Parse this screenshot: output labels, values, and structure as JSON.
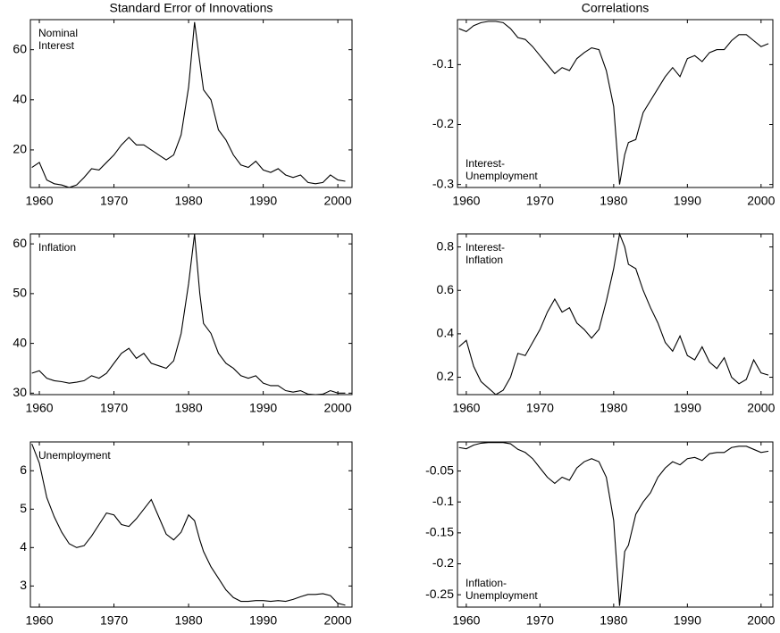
{
  "chart_data": [
    {
      "type": "line",
      "title": "Standard Error of Innovations",
      "annotation": [
        "Nominal",
        "Interest"
      ],
      "annotation_corner": "upper left",
      "color": "#000000",
      "x": [
        1959,
        1960,
        1961,
        1962,
        1963,
        1964,
        1965,
        1966,
        1967,
        1968,
        1969,
        1970,
        1971,
        1972,
        1973,
        1974,
        1975,
        1976,
        1977,
        1978,
        1979,
        1980,
        1980.8,
        1981.5,
        1982,
        1983,
        1984,
        1985,
        1986,
        1987,
        1988,
        1989,
        1990,
        1991,
        1992,
        1993,
        1994,
        1995,
        1996,
        1997,
        1998,
        1999,
        2000,
        2001
      ],
      "values": [
        13,
        15,
        8,
        6.5,
        6,
        5,
        6,
        9,
        12.5,
        12,
        15,
        18,
        22,
        25,
        22,
        22,
        20,
        18,
        16,
        18,
        26,
        45,
        71,
        55,
        44,
        40,
        28,
        24,
        18,
        14,
        13,
        15.5,
        12,
        11,
        12.5,
        10,
        9,
        10,
        7,
        6.5,
        7,
        10,
        8,
        7.5
      ],
      "xlim": [
        1958.8,
        2001.9
      ],
      "xticks": [
        1960,
        1970,
        1980,
        1990,
        2000
      ],
      "ylim": [
        5,
        72
      ],
      "yticks": [
        20,
        40,
        60
      ]
    },
    {
      "type": "line",
      "title": "Correlations",
      "annotation": [
        "Interest-",
        "Unemployment"
      ],
      "annotation_corner": "lower left",
      "color": "#000000",
      "x": [
        1959,
        1960,
        1961,
        1962,
        1963,
        1964,
        1965,
        1966,
        1967,
        1968,
        1969,
        1970,
        1971,
        1972,
        1973,
        1974,
        1975,
        1976,
        1977,
        1978,
        1979,
        1980,
        1980.8,
        1981.5,
        1982,
        1983,
        1984,
        1985,
        1986,
        1987,
        1988,
        1989,
        1990,
        1991,
        1992,
        1993,
        1994,
        1995,
        1996,
        1997,
        1998,
        1999,
        2000,
        2001
      ],
      "values": [
        -0.04,
        -0.045,
        -0.035,
        -0.03,
        -0.028,
        -0.028,
        -0.03,
        -0.04,
        -0.055,
        -0.058,
        -0.07,
        -0.085,
        -0.1,
        -0.115,
        -0.105,
        -0.11,
        -0.09,
        -0.08,
        -0.072,
        -0.075,
        -0.11,
        -0.17,
        -0.3,
        -0.25,
        -0.23,
        -0.225,
        -0.18,
        -0.16,
        -0.14,
        -0.12,
        -0.105,
        -0.12,
        -0.09,
        -0.085,
        -0.095,
        -0.08,
        -0.075,
        -0.075,
        -0.06,
        -0.05,
        -0.05,
        -0.06,
        -0.07,
        -0.065
      ],
      "xlim": [
        1958.8,
        2001.6
      ],
      "xticks": [
        1960,
        1970,
        1980,
        1990,
        2000
      ],
      "ylim": [
        -0.305,
        -0.025
      ],
      "yticks": [
        -0.1,
        -0.2,
        -0.3
      ]
    },
    {
      "type": "line",
      "annotation": [
        "Inflation"
      ],
      "annotation_corner": "upper left",
      "color": "#000000",
      "x": [
        1959,
        1960,
        1961,
        1962,
        1963,
        1964,
        1965,
        1966,
        1967,
        1968,
        1969,
        1970,
        1971,
        1972,
        1973,
        1974,
        1975,
        1976,
        1977,
        1978,
        1979,
        1980,
        1980.8,
        1981.5,
        1982,
        1983,
        1984,
        1985,
        1986,
        1987,
        1988,
        1989,
        1990,
        1991,
        1992,
        1993,
        1994,
        1995,
        1996,
        1997,
        1998,
        1999,
        2000,
        2001
      ],
      "values": [
        34,
        34.5,
        33,
        32.5,
        32.3,
        32,
        32.2,
        32.5,
        33.5,
        33,
        34,
        36,
        38,
        39,
        37,
        38,
        36,
        35.5,
        35,
        36.5,
        42,
        52,
        62,
        50,
        44,
        42,
        38,
        36,
        35,
        33.5,
        33,
        33.5,
        32,
        31.5,
        31.5,
        30.5,
        30.2,
        30.5,
        29.8,
        29.7,
        29.8,
        30.5,
        30,
        30
      ],
      "xlim": [
        1958.8,
        2001.9
      ],
      "xticks": [
        1960,
        1970,
        1980,
        1990,
        2000
      ],
      "ylim": [
        29.7,
        62
      ],
      "yticks": [
        30,
        40,
        50,
        60
      ]
    },
    {
      "type": "line",
      "annotation": [
        "Interest-",
        "Inflation"
      ],
      "annotation_corner": "upper left",
      "color": "#000000",
      "x": [
        1959,
        1960,
        1961,
        1962,
        1963,
        1964,
        1965,
        1966,
        1967,
        1968,
        1969,
        1970,
        1971,
        1972,
        1973,
        1974,
        1975,
        1976,
        1977,
        1978,
        1979,
        1980,
        1980.8,
        1981.5,
        1982,
        1983,
        1984,
        1985,
        1986,
        1987,
        1988,
        1989,
        1990,
        1991,
        1992,
        1993,
        1994,
        1995,
        1996,
        1997,
        1998,
        1999,
        2000,
        2001
      ],
      "values": [
        0.34,
        0.37,
        0.25,
        0.18,
        0.15,
        0.12,
        0.14,
        0.2,
        0.31,
        0.3,
        0.36,
        0.42,
        0.5,
        0.56,
        0.5,
        0.52,
        0.45,
        0.42,
        0.38,
        0.42,
        0.55,
        0.7,
        0.86,
        0.8,
        0.72,
        0.7,
        0.6,
        0.52,
        0.45,
        0.36,
        0.32,
        0.39,
        0.3,
        0.28,
        0.34,
        0.27,
        0.24,
        0.29,
        0.2,
        0.17,
        0.19,
        0.28,
        0.22,
        0.21
      ],
      "xlim": [
        1958.8,
        2001.6
      ],
      "xticks": [
        1960,
        1970,
        1980,
        1990,
        2000
      ],
      "ylim": [
        0.12,
        0.86
      ],
      "yticks": [
        0.2,
        0.4,
        0.6,
        0.8
      ]
    },
    {
      "type": "line",
      "annotation": [
        "Unemployment"
      ],
      "annotation_corner": "upper left",
      "color": "#000000",
      "x": [
        1959,
        1960,
        1961,
        1962,
        1963,
        1964,
        1965,
        1966,
        1967,
        1968,
        1969,
        1970,
        1971,
        1972,
        1973,
        1974,
        1975,
        1976,
        1977,
        1978,
        1979,
        1980,
        1980.8,
        1981.5,
        1982,
        1983,
        1984,
        1985,
        1986,
        1987,
        1988,
        1989,
        1990,
        1991,
        1992,
        1993,
        1994,
        1995,
        1996,
        1997,
        1998,
        1999,
        2000,
        2001
      ],
      "values": [
        6.7,
        6.2,
        5.3,
        4.8,
        4.4,
        4.1,
        4.0,
        4.05,
        4.3,
        4.6,
        4.9,
        4.85,
        4.6,
        4.55,
        4.75,
        5.0,
        5.25,
        4.8,
        4.35,
        4.2,
        4.4,
        4.85,
        4.7,
        4.2,
        3.9,
        3.5,
        3.2,
        2.9,
        2.7,
        2.6,
        2.6,
        2.62,
        2.62,
        2.6,
        2.62,
        2.6,
        2.65,
        2.72,
        2.78,
        2.78,
        2.8,
        2.75,
        2.55,
        2.5
      ],
      "xlim": [
        1958.8,
        2001.9
      ],
      "xticks": [
        1960,
        1970,
        1980,
        1990,
        2000
      ],
      "ylim": [
        2.45,
        6.75
      ],
      "yticks": [
        3,
        4,
        5,
        6
      ]
    },
    {
      "type": "line",
      "annotation": [
        "Inflation-",
        "Unemployment"
      ],
      "annotation_corner": "lower left",
      "color": "#000000",
      "x": [
        1959,
        1960,
        1961,
        1962,
        1963,
        1964,
        1965,
        1966,
        1967,
        1968,
        1969,
        1970,
        1971,
        1972,
        1973,
        1974,
        1975,
        1976,
        1977,
        1978,
        1979,
        1980,
        1980.8,
        1981.5,
        1982,
        1983,
        1984,
        1985,
        1986,
        1987,
        1988,
        1989,
        1990,
        1991,
        1992,
        1993,
        1994,
        1995,
        1996,
        1997,
        1998,
        1999,
        2000,
        2001
      ],
      "values": [
        -0.012,
        -0.014,
        -0.008,
        -0.005,
        -0.004,
        -0.004,
        -0.004,
        -0.006,
        -0.015,
        -0.02,
        -0.03,
        -0.045,
        -0.06,
        -0.07,
        -0.06,
        -0.065,
        -0.045,
        -0.035,
        -0.03,
        -0.035,
        -0.06,
        -0.13,
        -0.268,
        -0.18,
        -0.17,
        -0.12,
        -0.1,
        -0.085,
        -0.06,
        -0.045,
        -0.035,
        -0.04,
        -0.03,
        -0.028,
        -0.033,
        -0.022,
        -0.02,
        -0.02,
        -0.012,
        -0.01,
        -0.01,
        -0.015,
        -0.02,
        -0.018
      ],
      "xlim": [
        1958.8,
        2001.6
      ],
      "xticks": [
        1960,
        1970,
        1980,
        1990,
        2000
      ],
      "ylim": [
        -0.27,
        -0.003
      ],
      "yticks": [
        -0.05,
        -0.1,
        -0.15,
        -0.2,
        -0.25
      ]
    }
  ]
}
